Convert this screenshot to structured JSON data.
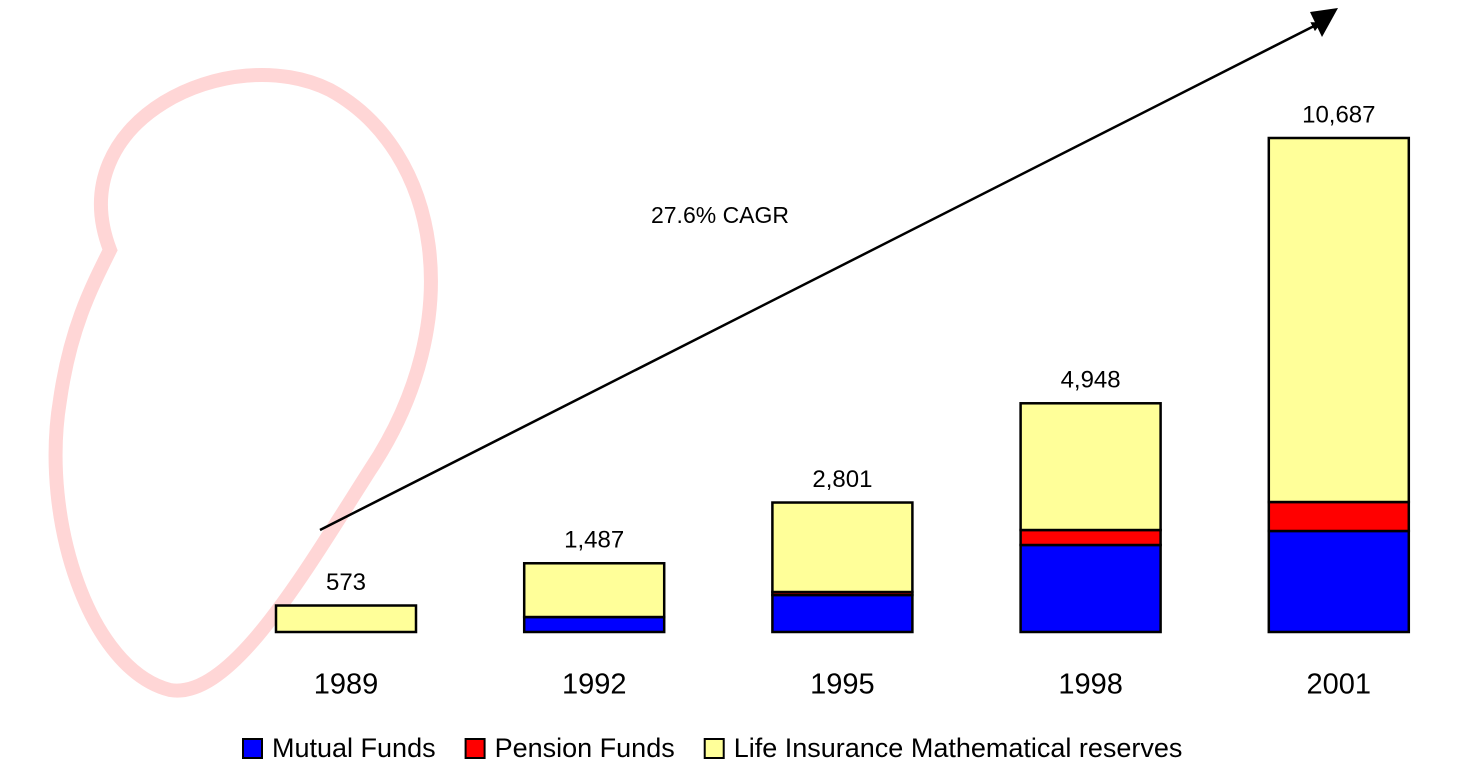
{
  "chart_data": {
    "type": "stacked_bar",
    "annotation": "27.6% CAGR",
    "categories": [
      "1989",
      "1992",
      "1995",
      "1998",
      "2001"
    ],
    "series": [
      {
        "name": "Mutual Funds",
        "color": "#0000ff",
        "values": [
          0,
          324,
          800,
          1882,
          2185
        ]
      },
      {
        "name": "Pension Funds",
        "color": "#ff0000",
        "values": [
          0,
          0,
          65,
          324,
          627
        ]
      },
      {
        "name": "Life Insurance Mathematical reserves",
        "color": "#ffff99",
        "values": [
          573,
          1163,
          1936,
          2742,
          7875
        ]
      }
    ],
    "totals": {
      "values": [
        573,
        1487,
        2801,
        4948,
        10687
      ],
      "value_labels": [
        "573",
        "1,487",
        "2,801",
        "4,948",
        "10,687"
      ]
    },
    "legend": "bottom"
  }
}
